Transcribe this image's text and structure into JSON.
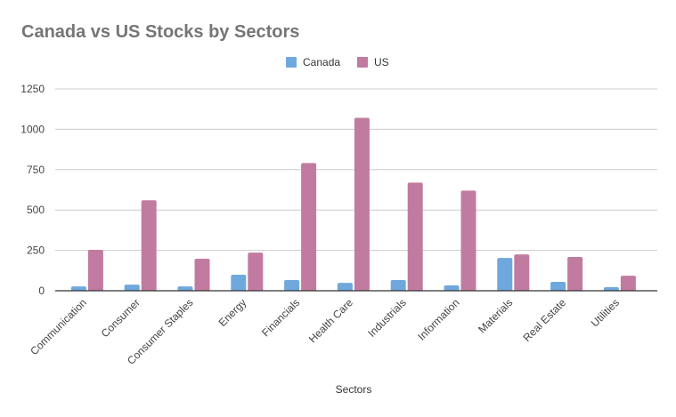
{
  "chart_data": {
    "type": "bar",
    "title": "Canada vs US Stocks by Sectors",
    "xlabel": "Sectors",
    "ylabel": "",
    "ylim": [
      0,
      1250
    ],
    "yticks": [
      "0",
      "250",
      "500",
      "750",
      "1000",
      "1250"
    ],
    "ytick_values": [
      0,
      250,
      500,
      750,
      1000,
      1250
    ],
    "grid": true,
    "legend_position": "top-center",
    "categories": [
      "Communication",
      "Consumer",
      "Consumer Staples",
      "Energy",
      "Financials",
      "Health Care",
      "Industrials",
      "Information",
      "Materials",
      "Real Estate",
      "Utilities"
    ],
    "series": [
      {
        "name": "Canada",
        "color": "#6fa8dc",
        "values": [
          27,
          38,
          27,
          99,
          66,
          49,
          66,
          33,
          203,
          55,
          22
        ]
      },
      {
        "name": "US",
        "color": "#c27ba0",
        "values": [
          253,
          560,
          198,
          236,
          791,
          1071,
          670,
          620,
          225,
          209,
          93
        ]
      }
    ]
  }
}
